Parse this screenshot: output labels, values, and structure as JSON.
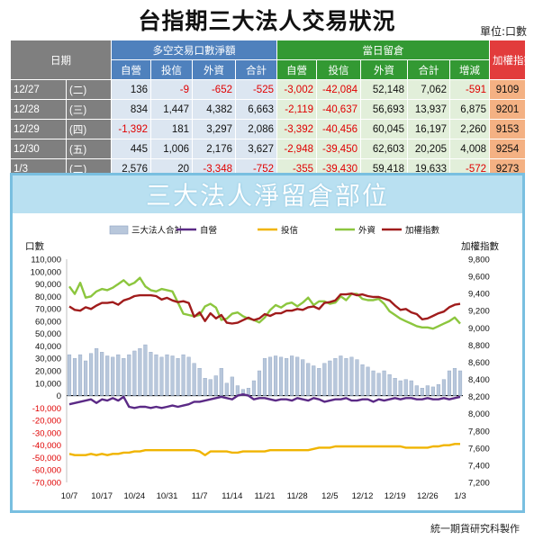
{
  "title": "台指期三大法人交易狀況",
  "unit": "單位:口數",
  "table": {
    "date_header": "日期",
    "group1_header": "多空交易口數淨額",
    "group2_header": "當日留倉",
    "index_header": "加權指數",
    "group1_cols": [
      "自營",
      "投信",
      "外資",
      "合計"
    ],
    "group2_cols": [
      "自營",
      "投信",
      "外資",
      "合計",
      "增減"
    ],
    "rows": [
      {
        "date": "12/27",
        "dow": "(二)",
        "g1": [
          "136",
          "-9",
          "-652",
          "-525"
        ],
        "g2": [
          "-3,002",
          "-42,084",
          "52,148",
          "7,062",
          "-591"
        ],
        "idx": "9109"
      },
      {
        "date": "12/28",
        "dow": "(三)",
        "g1": [
          "834",
          "1,447",
          "4,382",
          "6,663"
        ],
        "g2": [
          "-2,119",
          "-40,637",
          "56,693",
          "13,937",
          "6,875"
        ],
        "idx": "9201"
      },
      {
        "date": "12/29",
        "dow": "(四)",
        "g1": [
          "-1,392",
          "181",
          "3,297",
          "2,086"
        ],
        "g2": [
          "-3,392",
          "-40,456",
          "60,045",
          "16,197",
          "2,260"
        ],
        "idx": "9153"
      },
      {
        "date": "12/30",
        "dow": "(五)",
        "g1": [
          "445",
          "1,006",
          "2,176",
          "3,627"
        ],
        "g2": [
          "-2,948",
          "-39,450",
          "62,603",
          "20,205",
          "4,008"
        ],
        "idx": "9254"
      },
      {
        "date": "1/3",
        "dow": "(二)",
        "g1": [
          "2,576",
          "20",
          "-3,348",
          "-752"
        ],
        "g2": [
          "-355",
          "-39,430",
          "59,418",
          "19,633",
          "-572"
        ],
        "idx": "9273"
      }
    ]
  },
  "chart_data": {
    "type": "line",
    "title": "三大法人淨留倉部位",
    "y_left_label": "口數",
    "y_right_label": "加權指數",
    "ylim_left": [
      -70000,
      110000
    ],
    "ylim_right": [
      7200,
      9800
    ],
    "left_ticks": [
      "110,000",
      "100,000",
      "90,000",
      "80,000",
      "70,000",
      "60,000",
      "50,000",
      "40,000",
      "30,000",
      "20,000",
      "10,000",
      "0",
      "-10,000",
      "-20,000",
      "-30,000",
      "-40,000",
      "-50,000",
      "-60,000",
      "-70,000"
    ],
    "right_ticks": [
      "9,800",
      "9,600",
      "9,400",
      "9,200",
      "9,000",
      "8,800",
      "8,600",
      "8,400",
      "8,200",
      "8,000",
      "7,800",
      "7,600",
      "7,400",
      "7,200"
    ],
    "x_tick_labels": [
      "10/7",
      "10/17",
      "10/24",
      "10/31",
      "11/7",
      "11/14",
      "11/21",
      "11/28",
      "12/5",
      "12/12",
      "12/19",
      "12/26",
      "1/3"
    ],
    "x_tick_index": [
      0,
      6,
      12,
      18,
      24,
      30,
      36,
      42,
      48,
      54,
      60,
      66,
      72
    ],
    "legend": [
      "三大法人合計",
      "自營",
      "投信",
      "外資",
      "加權指數"
    ],
    "legend_placement": "top",
    "colors": {
      "total": "#b8c7db",
      "dealer": "#5b2a86",
      "trust": "#f0b400",
      "foreign": "#8cc63e",
      "index": "#a01c1c"
    },
    "n_points": 73,
    "series": [
      {
        "name": "三大法人合計",
        "axis": "left",
        "type": "bar",
        "values": [
          33000,
          30000,
          33000,
          28000,
          34000,
          38000,
          35000,
          32000,
          31000,
          33000,
          30000,
          33000,
          36000,
          38000,
          41000,
          35000,
          33000,
          31000,
          33000,
          32000,
          30000,
          33000,
          31000,
          26000,
          22000,
          14000,
          13000,
          16000,
          22000,
          10000,
          15000,
          8000,
          5000,
          6000,
          12000,
          20000,
          30000,
          31000,
          32000,
          31000,
          30000,
          32000,
          31000,
          29000,
          26000,
          24000,
          22000,
          26000,
          28000,
          30000,
          32000,
          30000,
          31000,
          29000,
          25000,
          23000,
          20000,
          18000,
          20000,
          17000,
          14000,
          12000,
          13000,
          12000,
          8000,
          6000,
          8000,
          7000,
          9000,
          13000,
          20000,
          22000,
          20000
        ]
      },
      {
        "name": "自營",
        "axis": "left",
        "values": [
          -7000,
          -6000,
          -5000,
          -4000,
          -3000,
          -6000,
          -3000,
          -4000,
          -2000,
          -4000,
          -1000,
          -9000,
          -10000,
          -9000,
          -9000,
          -10000,
          -9000,
          -10000,
          -9000,
          -8000,
          -9000,
          -8000,
          -7000,
          -5000,
          -5000,
          -4000,
          -3000,
          -2000,
          -1000,
          -2000,
          -3000,
          0,
          1000,
          0,
          -3000,
          -2000,
          -2000,
          -3000,
          -4000,
          -3000,
          -3000,
          -4000,
          -2000,
          -3000,
          -4000,
          -2000,
          -3000,
          -5000,
          -4000,
          -3000,
          -3000,
          -2000,
          -4000,
          -4000,
          -3000,
          -3000,
          -5000,
          -3000,
          -4000,
          -3000,
          -2000,
          -3000,
          -2000,
          -2000,
          -3000,
          -3000,
          -2000,
          -3000,
          -3000,
          -2000,
          -3000,
          -2000,
          -1000
        ]
      },
      {
        "name": "投信",
        "axis": "left",
        "values": [
          -47000,
          -48000,
          -48000,
          -48000,
          -47000,
          -48000,
          -47000,
          -48000,
          -47000,
          -47000,
          -46000,
          -46000,
          -45000,
          -45000,
          -44000,
          -44000,
          -44000,
          -44000,
          -44000,
          -44000,
          -44000,
          -44000,
          -44000,
          -44000,
          -45000,
          -48000,
          -45000,
          -45000,
          -45000,
          -45000,
          -46000,
          -46000,
          -45000,
          -45000,
          -45000,
          -45000,
          -45000,
          -44000,
          -44000,
          -44000,
          -44000,
          -44000,
          -44000,
          -44000,
          -44000,
          -43000,
          -42000,
          -42000,
          -42000,
          -41000,
          -41000,
          -41000,
          -41000,
          -41000,
          -41000,
          -41000,
          -41000,
          -41000,
          -41000,
          -41000,
          -41000,
          -41000,
          -42000,
          -42000,
          -42000,
          -42000,
          -42000,
          -41000,
          -41000,
          -40000,
          -40000,
          -39000,
          -39000
        ]
      },
      {
        "name": "外資",
        "axis": "left",
        "values": [
          88000,
          82000,
          91000,
          79000,
          80000,
          84000,
          86000,
          85000,
          87000,
          90000,
          93000,
          89000,
          91000,
          95000,
          88000,
          85000,
          84000,
          86000,
          85000,
          84000,
          75000,
          66000,
          65000,
          64000,
          65000,
          72000,
          74000,
          71000,
          61000,
          62000,
          66000,
          67000,
          64000,
          62000,
          61000,
          59000,
          63000,
          69000,
          73000,
          71000,
          74000,
          75000,
          72000,
          75000,
          79000,
          73000,
          76000,
          76000,
          74000,
          75000,
          80000,
          77000,
          82000,
          82000,
          78000,
          77000,
          77000,
          78000,
          74000,
          68000,
          65000,
          62000,
          60000,
          58000,
          56000,
          55000,
          55000,
          54000,
          56000,
          58000,
          60000,
          63000,
          58000
        ]
      },
      {
        "name": "加權指數",
        "axis": "right",
        "values": [
          9250,
          9210,
          9200,
          9240,
          9220,
          9260,
          9290,
          9290,
          9300,
          9270,
          9320,
          9340,
          9370,
          9380,
          9380,
          9380,
          9370,
          9330,
          9350,
          9320,
          9300,
          9310,
          9290,
          9130,
          9180,
          9080,
          9170,
          9110,
          9150,
          9060,
          9050,
          9060,
          9090,
          9120,
          9090,
          9110,
          9160,
          9140,
          9170,
          9170,
          9200,
          9200,
          9220,
          9210,
          9240,
          9250,
          9220,
          9290,
          9300,
          9320,
          9390,
          9390,
          9400,
          9380,
          9390,
          9370,
          9360,
          9360,
          9340,
          9320,
          9260,
          9210,
          9220,
          9180,
          9160,
          9100,
          9110,
          9140,
          9170,
          9190,
          9240,
          9270,
          9280
        ]
      }
    ]
  },
  "footer": "統一期貨研究科製作"
}
